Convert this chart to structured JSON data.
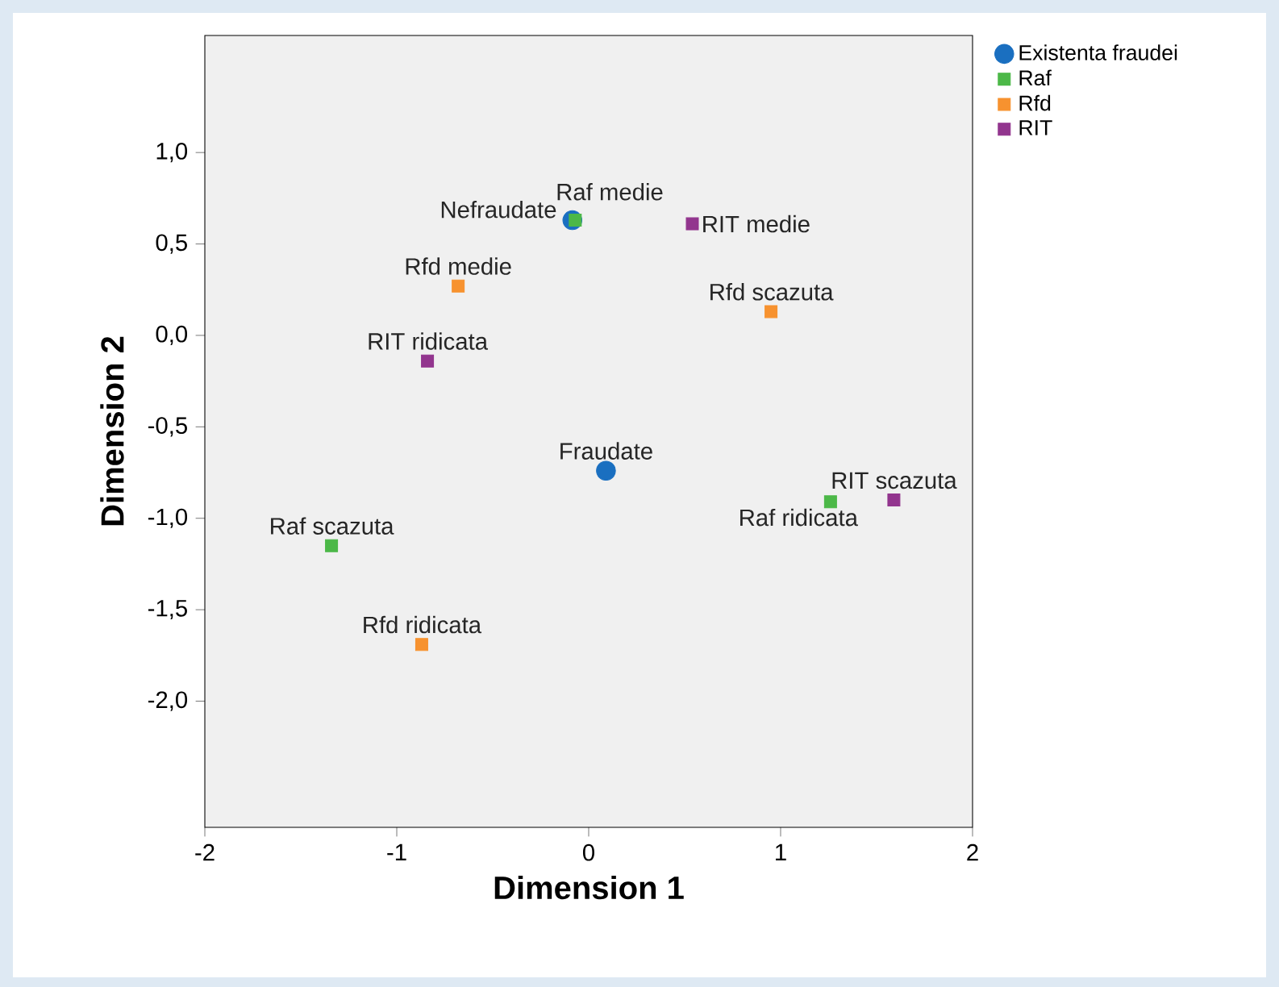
{
  "chart_data": {
    "type": "scatter",
    "xlabel": "Dimension 1",
    "ylabel": "Dimension 2",
    "xlim": [
      -2,
      2
    ],
    "ylim": [
      -2.69,
      1.64
    ],
    "xticks": [
      -2,
      -1,
      0,
      1,
      2
    ],
    "yticks": [
      {
        "value": 1,
        "label": "1,0"
      },
      {
        "value": 0.5,
        "label": "0,5"
      },
      {
        "value": 0,
        "label": "0,0"
      },
      {
        "value": -0.5,
        "label": "-0,5"
      },
      {
        "value": -1,
        "label": "-1,0"
      },
      {
        "value": -1.5,
        "label": "-1,5"
      },
      {
        "value": -2,
        "label": "-2,0"
      }
    ],
    "grid": false,
    "legend": "right",
    "series": [
      {
        "name": "Existenta fraudei",
        "color": "#1a6fc0",
        "marker": "circle",
        "x": [
          -0.085,
          0.09
        ],
        "values": [
          0.63,
          -0.74
        ]
      },
      {
        "name": "Raf",
        "color": "#4cb848",
        "marker": "square",
        "x": [
          -0.07,
          -1.34,
          1.26
        ],
        "values": [
          0.63,
          -1.15,
          -0.91
        ]
      },
      {
        "name": "Rfd",
        "color": "#f7922f",
        "marker": "square",
        "x": [
          -0.68,
          0.95,
          -0.87
        ],
        "values": [
          0.27,
          0.13,
          -1.69
        ]
      },
      {
        "name": "RIT",
        "color": "#92358e",
        "marker": "square",
        "x": [
          0.54,
          -0.84,
          1.59
        ],
        "values": [
          0.61,
          -0.14,
          -0.9
        ]
      }
    ],
    "annotations": [
      {
        "text": "Nefraudate",
        "x": -0.085,
        "y": 0.63
      },
      {
        "text": "Fraudate",
        "x": 0.09,
        "y": -0.74
      },
      {
        "text": "Raf medie",
        "x": -0.07,
        "y": 0.63
      },
      {
        "text": "Raf scazuta",
        "x": -1.34,
        "y": -1.15
      },
      {
        "text": "Raf ridicata",
        "x": 1.26,
        "y": -0.91
      },
      {
        "text": "Rfd medie",
        "x": -0.68,
        "y": 0.27
      },
      {
        "text": "Rfd scazuta",
        "x": 0.95,
        "y": 0.13
      },
      {
        "text": "Rfd ridicata",
        "x": -0.87,
        "y": -1.69
      },
      {
        "text": "RIT medie",
        "x": 0.54,
        "y": 0.61
      },
      {
        "text": "RIT ridicata",
        "x": -0.84,
        "y": -0.14
      },
      {
        "text": "RIT scazuta",
        "x": 1.59,
        "y": -0.9
      }
    ]
  }
}
